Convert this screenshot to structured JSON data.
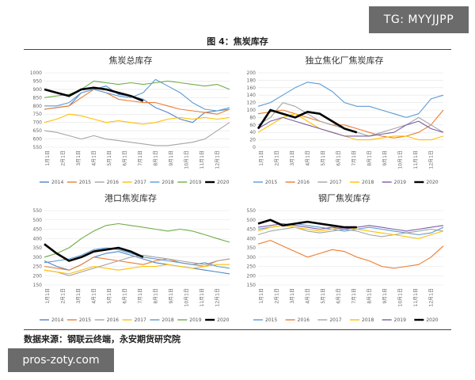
{
  "watermark": {
    "tag": "TG: MYYJJPP",
    "site": "pros-zoty.com"
  },
  "figure": {
    "title": "图 4：焦炭库存",
    "source": "数据来源：钢联云终端，永安期货研究院"
  },
  "colors": {
    "2014": "#4f86c6",
    "2015": "#ed7d31",
    "2016": "#a5a5a5",
    "2017": "#ffc000",
    "2018": "#5b9bd5",
    "2019": "#70ad47",
    "2020": "#000000",
    "2015b": "#5b9bd5",
    "2016b": "#ed7d31",
    "2017b": "#a5a5a5",
    "2018b": "#ffc000",
    "2019b": "#7b5ea7"
  },
  "chart_data": [
    {
      "type": "line",
      "title": "焦炭总库存",
      "ylim": [
        550,
        1000
      ],
      "yticks": [
        550,
        600,
        650,
        700,
        750,
        800,
        850,
        900,
        950,
        1000
      ],
      "xticks": [
        "1月1日",
        "2月1日",
        "3月1日",
        "4月1日",
        "5月1日",
        "6月1日",
        "7月1日",
        "8月1日",
        "9月1日",
        "10月1日",
        "11月1日",
        "12月1日"
      ],
      "series": [
        {
          "name": "2014",
          "color": "2014",
          "values": [
            780,
            790,
            800,
            880,
            900,
            920,
            870,
            860,
            840,
            790,
            760,
            720,
            700,
            760,
            770,
            780
          ]
        },
        {
          "name": "2015",
          "color": "2015",
          "values": [
            780,
            790,
            800,
            850,
            900,
            880,
            840,
            830,
            820,
            820,
            800,
            780,
            770,
            760,
            750,
            780
          ]
        },
        {
          "name": "2016",
          "color": "2016",
          "values": [
            650,
            640,
            620,
            600,
            620,
            600,
            590,
            580,
            570,
            560,
            560,
            570,
            580,
            600,
            650,
            700
          ]
        },
        {
          "name": "2017",
          "color": "2017",
          "values": [
            700,
            720,
            750,
            740,
            720,
            700,
            710,
            700,
            690,
            700,
            720,
            730,
            720,
            730,
            720,
            730
          ]
        },
        {
          "name": "2018",
          "color": "2018",
          "values": [
            800,
            800,
            820,
            880,
            900,
            880,
            860,
            850,
            880,
            960,
            920,
            880,
            820,
            780,
            770,
            790
          ]
        },
        {
          "name": "2019",
          "color": "2019",
          "values": [
            850,
            860,
            870,
            900,
            950,
            940,
            930,
            940,
            930,
            940,
            950,
            940,
            930,
            920,
            930,
            900
          ]
        },
        {
          "name": "2020",
          "color": "2020",
          "values": [
            900,
            880,
            860,
            900,
            910,
            900,
            880,
            860,
            830
          ]
        }
      ],
      "legend": [
        "2014",
        "2015",
        "2016",
        "2017",
        "2018",
        "2019",
        "2020"
      ]
    },
    {
      "type": "line",
      "title": "独立焦化厂焦炭库存",
      "ylim": [
        0,
        200
      ],
      "yticks": [
        0,
        20,
        40,
        60,
        80,
        100,
        120,
        140,
        160,
        180,
        200
      ],
      "xticks": [
        "1月1日",
        "2月1日",
        "3月1日",
        "4月1日",
        "5月1日",
        "6月1日",
        "7月1日",
        "8月1日",
        "9月1日",
        "10月1日",
        "11月1日",
        "12月1日"
      ],
      "series": [
        {
          "name": "2015",
          "color": "2015b",
          "values": [
            110,
            120,
            140,
            160,
            175,
            170,
            150,
            120,
            110,
            110,
            100,
            90,
            80,
            90,
            130,
            140
          ]
        },
        {
          "name": "2016",
          "color": "2016b",
          "values": [
            90,
            95,
            100,
            90,
            80,
            70,
            60,
            60,
            50,
            40,
            30,
            25,
            30,
            40,
            60,
            100
          ]
        },
        {
          "name": "2017",
          "color": "2017b",
          "values": [
            60,
            80,
            120,
            110,
            90,
            70,
            60,
            50,
            40,
            30,
            40,
            50,
            60,
            80,
            60,
            40
          ]
        },
        {
          "name": "2018",
          "color": "2018b",
          "values": [
            40,
            60,
            80,
            90,
            70,
            50,
            40,
            30,
            20,
            20,
            25,
            30,
            30,
            20,
            20,
            30
          ]
        },
        {
          "name": "2019",
          "color": "2019b",
          "values": [
            50,
            70,
            80,
            70,
            60,
            50,
            40,
            30,
            30,
            30,
            35,
            40,
            60,
            70,
            50,
            40
          ]
        },
        {
          "name": "2020",
          "color": "2020",
          "values": [
            50,
            100,
            90,
            80,
            95,
            90,
            70,
            50,
            40
          ]
        }
      ],
      "legend": [
        "2015",
        "2016",
        "2017",
        "2018",
        "2019",
        "2020"
      ]
    },
    {
      "type": "line",
      "title": "港口焦炭库存",
      "ylim": [
        150,
        550
      ],
      "yticks": [
        150,
        200,
        250,
        300,
        350,
        400,
        450,
        500,
        550
      ],
      "xticks": [
        "1月1日",
        "2月1日",
        "3月1日",
        "4月1日",
        "5月1日",
        "6月1日",
        "7月1日",
        "8月1日",
        "9月1日",
        "10月1日",
        "11月1日",
        "12月1日"
      ],
      "series": [
        {
          "name": "2014",
          "color": "2014",
          "values": [
            280,
            250,
            230,
            260,
            300,
            320,
            330,
            310,
            290,
            270,
            260,
            250,
            240,
            230,
            220,
            210
          ]
        },
        {
          "name": "2015",
          "color": "2015",
          "values": [
            250,
            240,
            230,
            260,
            300,
            290,
            280,
            270,
            260,
            280,
            290,
            270,
            260,
            250,
            280,
            290
          ]
        },
        {
          "name": "2016",
          "color": "2016",
          "values": [
            230,
            220,
            200,
            220,
            240,
            260,
            280,
            300,
            310,
            300,
            290,
            280,
            270,
            260,
            280,
            290
          ]
        },
        {
          "name": "2017",
          "color": "2017",
          "values": [
            230,
            220,
            210,
            230,
            250,
            240,
            230,
            240,
            250,
            250,
            260,
            250,
            240,
            250,
            260,
            260
          ]
        },
        {
          "name": "2018",
          "color": "2018",
          "values": [
            270,
            280,
            290,
            310,
            340,
            350,
            340,
            320,
            300,
            290,
            280,
            270,
            260,
            270,
            250,
            240
          ]
        },
        {
          "name": "2019",
          "color": "2019",
          "values": [
            300,
            320,
            350,
            400,
            440,
            470,
            480,
            470,
            460,
            450,
            440,
            450,
            440,
            420,
            400,
            380
          ]
        },
        {
          "name": "2020",
          "color": "2020",
          "values": [
            370,
            320,
            280,
            300,
            330,
            340,
            350,
            330,
            300
          ]
        }
      ],
      "legend": [
        "2014",
        "2015",
        "2016",
        "2017",
        "2018",
        "2019",
        "2020"
      ]
    },
    {
      "type": "line",
      "title": "钢厂焦炭库存",
      "ylim": [
        150,
        550
      ],
      "yticks": [
        150,
        200,
        250,
        300,
        350,
        400,
        450,
        500,
        550
      ],
      "xticks": [
        "1月1日",
        "2月1日",
        "3月1日",
        "4月1日",
        "5月1日",
        "6月1日",
        "7月1日",
        "8月1日",
        "9月1日",
        "10月1日",
        "11月1日",
        "12月1日"
      ],
      "series": [
        {
          "name": "2015",
          "color": "2015b",
          "values": [
            450,
            460,
            470,
            480,
            470,
            460,
            450,
            440,
            450,
            460,
            450,
            440,
            430,
            420,
            430,
            460
          ]
        },
        {
          "name": "2016",
          "color": "2016b",
          "values": [
            370,
            390,
            360,
            330,
            300,
            320,
            340,
            330,
            300,
            280,
            250,
            240,
            250,
            260,
            300,
            360
          ]
        },
        {
          "name": "2017",
          "color": "2017b",
          "values": [
            420,
            440,
            450,
            460,
            440,
            430,
            440,
            450,
            440,
            420,
            410,
            420,
            430,
            440,
            450,
            440
          ]
        },
        {
          "name": "2018",
          "color": "2018b",
          "values": [
            440,
            460,
            470,
            460,
            450,
            440,
            450,
            460,
            450,
            440,
            430,
            420,
            410,
            400,
            420,
            440
          ]
        },
        {
          "name": "2019",
          "color": "2019b",
          "values": [
            460,
            470,
            480,
            470,
            460,
            450,
            460,
            450,
            460,
            470,
            460,
            450,
            440,
            450,
            460,
            470
          ]
        },
        {
          "name": "2020",
          "color": "2020",
          "values": [
            480,
            500,
            470,
            480,
            490,
            480,
            470,
            460,
            460
          ]
        }
      ],
      "legend": [
        "2015",
        "2016",
        "2017",
        "2018",
        "2019",
        "2020"
      ]
    }
  ]
}
